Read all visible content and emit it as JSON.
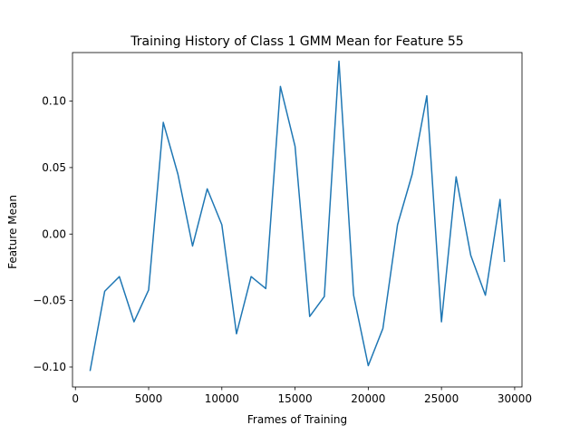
{
  "chart_data": {
    "type": "line",
    "title": "Training History of Class 1 GMM Mean for Feature 55",
    "xlabel": "Frames of Training",
    "ylabel": "Feature Mean",
    "xlim": [
      -200,
      30500
    ],
    "ylim": [
      -0.115,
      0.1365
    ],
    "xticks": [
      {
        "value": 0,
        "label": "0"
      },
      {
        "value": 5000,
        "label": "5000"
      },
      {
        "value": 10000,
        "label": "10000"
      },
      {
        "value": 15000,
        "label": "15000"
      },
      {
        "value": 20000,
        "label": "20000"
      },
      {
        "value": 25000,
        "label": "25000"
      },
      {
        "value": 30000,
        "label": "30000"
      }
    ],
    "yticks": [
      {
        "value": -0.1,
        "label": "−0.10"
      },
      {
        "value": -0.05,
        "label": "−0.05"
      },
      {
        "value": 0.0,
        "label": "0.00"
      },
      {
        "value": 0.05,
        "label": "0.05"
      },
      {
        "value": 0.1,
        "label": "0.10"
      }
    ],
    "grid": false,
    "series": [
      {
        "color": "#1f77b4",
        "x": [
          1000,
          2000,
          3000,
          4000,
          5000,
          6000,
          7000,
          8000,
          9000,
          10000,
          11000,
          12000,
          13000,
          14000,
          15000,
          16000,
          17000,
          18000,
          19000,
          20000,
          21000,
          22000,
          23000,
          24000,
          25000,
          26000,
          27000,
          28000,
          29000,
          29300
        ],
        "y": [
          -0.103,
          -0.043,
          -0.032,
          -0.066,
          -0.042,
          0.084,
          0.045,
          -0.009,
          0.034,
          0.007,
          -0.075,
          -0.032,
          -0.041,
          0.111,
          0.066,
          -0.062,
          -0.047,
          0.13,
          -0.046,
          -0.099,
          -0.071,
          0.007,
          0.045,
          0.104,
          -0.066,
          0.043,
          -0.016,
          -0.046,
          0.026,
          -0.021
        ]
      }
    ]
  }
}
